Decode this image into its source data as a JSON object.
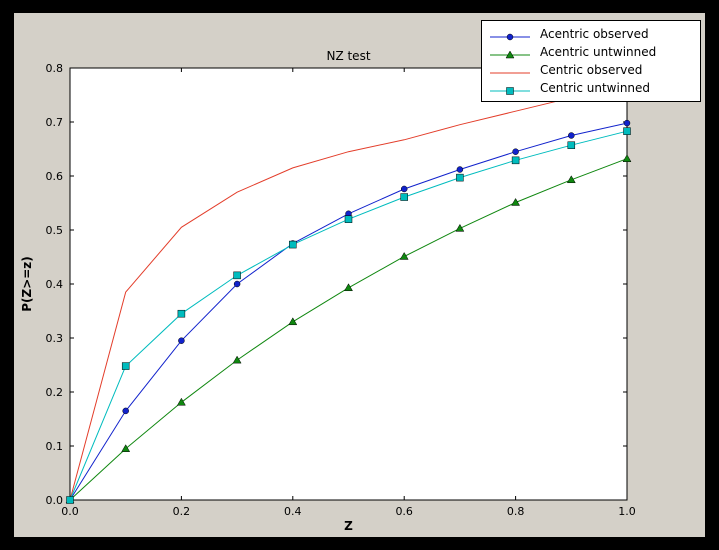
{
  "window": {
    "outer_background": "#000000",
    "figure_background": "#d4d0c8",
    "axes_background": "#ffffff",
    "text_color": "#000000"
  },
  "chart_data": {
    "type": "line",
    "title": "NZ test",
    "xlabel": "Z",
    "ylabel": "P(Z>=z)",
    "xlim": [
      0.0,
      1.0
    ],
    "ylim": [
      0.0,
      0.8
    ],
    "x_ticks": [
      "0.0",
      "0.2",
      "0.4",
      "0.6",
      "0.8",
      "1.0"
    ],
    "y_ticks": [
      "0.0",
      "0.1",
      "0.2",
      "0.3",
      "0.4",
      "0.5",
      "0.6",
      "0.7",
      "0.8"
    ],
    "grid": false,
    "legend_position": "upper right",
    "x": [
      0.0,
      0.1,
      0.2,
      0.3,
      0.4,
      0.5,
      0.6,
      0.7,
      0.8,
      0.9,
      1.0
    ],
    "series": [
      {
        "name": "Acentric observed",
        "color": "#1122cc",
        "marker": "circle",
        "values": [
          0.0,
          0.165,
          0.295,
          0.4,
          0.475,
          0.53,
          0.576,
          0.612,
          0.645,
          0.675,
          0.698
        ]
      },
      {
        "name": "Acentric untwinned",
        "color": "#0f870f",
        "marker": "triangle",
        "values": [
          0.0,
          0.095,
          0.181,
          0.259,
          0.33,
          0.393,
          0.451,
          0.503,
          0.551,
          0.593,
          0.632
        ]
      },
      {
        "name": "Centric observed",
        "color": "#e33d2a",
        "marker": "none",
        "values": [
          0.0,
          0.385,
          0.505,
          0.57,
          0.615,
          0.645,
          0.667,
          0.695,
          0.72,
          0.745,
          0.764
        ]
      },
      {
        "name": "Centric untwinned",
        "color": "#00bcbe",
        "marker": "square",
        "values": [
          0.0,
          0.248,
          0.345,
          0.416,
          0.473,
          0.52,
          0.561,
          0.597,
          0.629,
          0.657,
          0.683
        ]
      }
    ]
  }
}
